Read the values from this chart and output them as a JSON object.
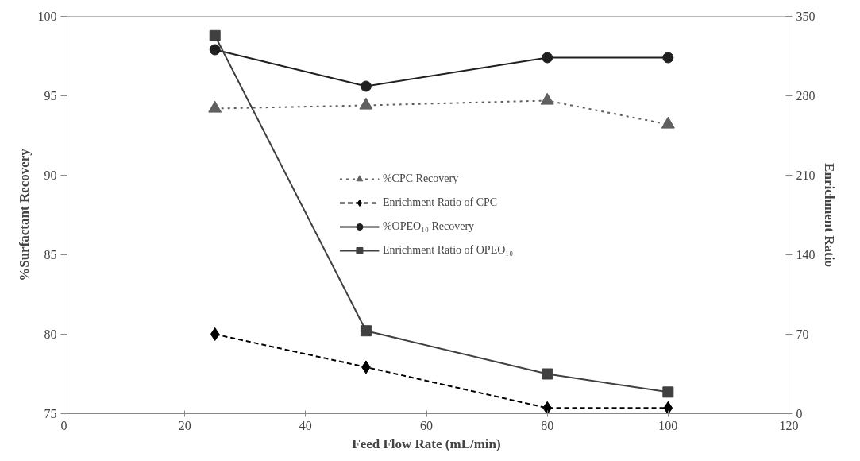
{
  "chart_data": {
    "type": "line",
    "xlabel": "Feed Flow Rate (mL/min)",
    "ylabel": "%Surfactant Recovery",
    "y2label": "Enrichment Ratio",
    "x": [
      25,
      50,
      80,
      100
    ],
    "series": [
      {
        "name": "%CPC Recovery",
        "color": "#606060",
        "marker": "triangle",
        "line_style": "dotted",
        "values": [
          94.2,
          94.4,
          94.7,
          93.2
        ]
      },
      {
        "name": "Enrichment Ratio of CPC",
        "color": "#000000",
        "marker": "diamond",
        "line_style": "dashed",
        "axis": "y2",
        "values": [
          70,
          41,
          5,
          5
        ]
      },
      {
        "name": "%OPEO₁₀ Recovery",
        "color": "#202020",
        "marker": "circle",
        "line_style": "solid",
        "values": [
          97.9,
          95.6,
          97.4,
          97.4
        ]
      },
      {
        "name": "Enrichment Ratio of OPEO₁₀",
        "color": "#404040",
        "marker": "square",
        "line_style": "solid",
        "axis": "y2",
        "values": [
          333,
          73,
          35,
          19
        ]
      }
    ],
    "xlim": [
      0,
      120
    ],
    "xticks": [
      0,
      20,
      40,
      60,
      80,
      100,
      120
    ],
    "ylim": [
      75,
      100
    ],
    "yticks": [
      75,
      80,
      85,
      90,
      95,
      100
    ],
    "y2lim": [
      0,
      350
    ],
    "y2ticks": [
      0,
      70,
      140,
      210,
      280,
      350
    ],
    "grid": false,
    "legend": "center"
  }
}
